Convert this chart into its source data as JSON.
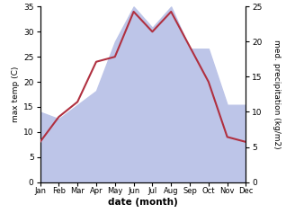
{
  "months": [
    "Jan",
    "Feb",
    "Mar",
    "Apr",
    "May",
    "Jun",
    "Jul",
    "Aug",
    "Sep",
    "Oct",
    "Nov",
    "Dec"
  ],
  "temperature": [
    8,
    13,
    16,
    24,
    25,
    34,
    30,
    34,
    27,
    20,
    9,
    8
  ],
  "precipitation": [
    10,
    9,
    11,
    13,
    20,
    25,
    22,
    25,
    19,
    19,
    11,
    11
  ],
  "temp_color": "#b03040",
  "precip_fill_color": "#bdc5e8",
  "temp_ylim": [
    0,
    35
  ],
  "precip_ylim": [
    0,
    25
  ],
  "temp_yticks": [
    0,
    5,
    10,
    15,
    20,
    25,
    30,
    35
  ],
  "precip_yticks": [
    0,
    5,
    10,
    15,
    20,
    25
  ],
  "xlabel": "date (month)",
  "ylabel_left": "max temp (C)",
  "ylabel_right": "med. precipitation (kg/m2)",
  "background_color": "#ffffff",
  "figsize": [
    3.18,
    2.47
  ],
  "dpi": 100
}
